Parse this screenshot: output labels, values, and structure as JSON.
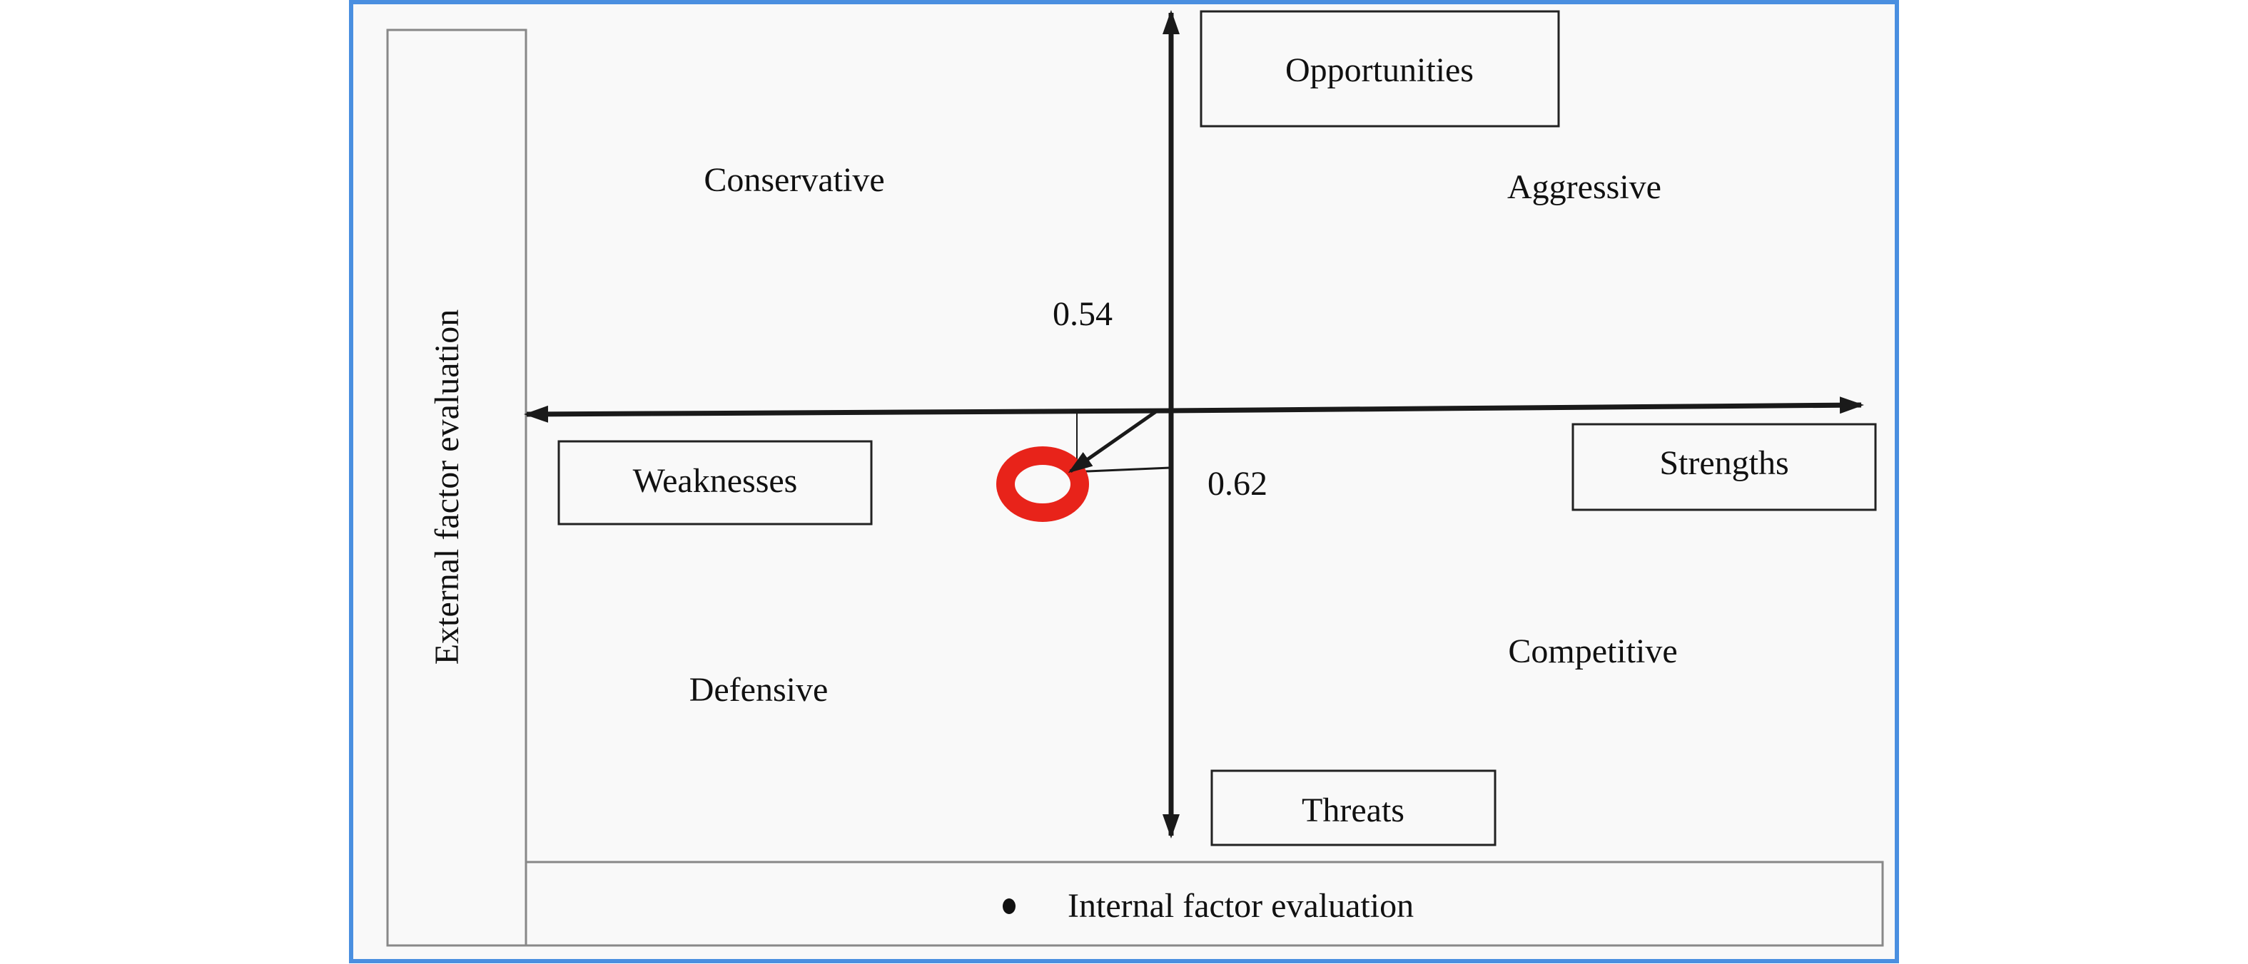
{
  "diagram": {
    "axis_labels": {
      "vertical": "External factor evaluation",
      "horizontal": "Internal factor evaluation"
    },
    "poles": {
      "top": "Opportunities",
      "bottom": "Threats",
      "left": "Weaknesses",
      "right": "Strengths"
    },
    "quadrants": {
      "top_left": "Conservative",
      "top_right": "Aggressive",
      "bottom_left": "Defensive",
      "bottom_right": "Competitive"
    },
    "values": {
      "external": "0.54",
      "internal": "0.62"
    },
    "colors": {
      "frame": "#4a8fe0",
      "marker": "#e8231a",
      "axis": "#1a1a1a",
      "background": "#f9f9f9"
    }
  }
}
